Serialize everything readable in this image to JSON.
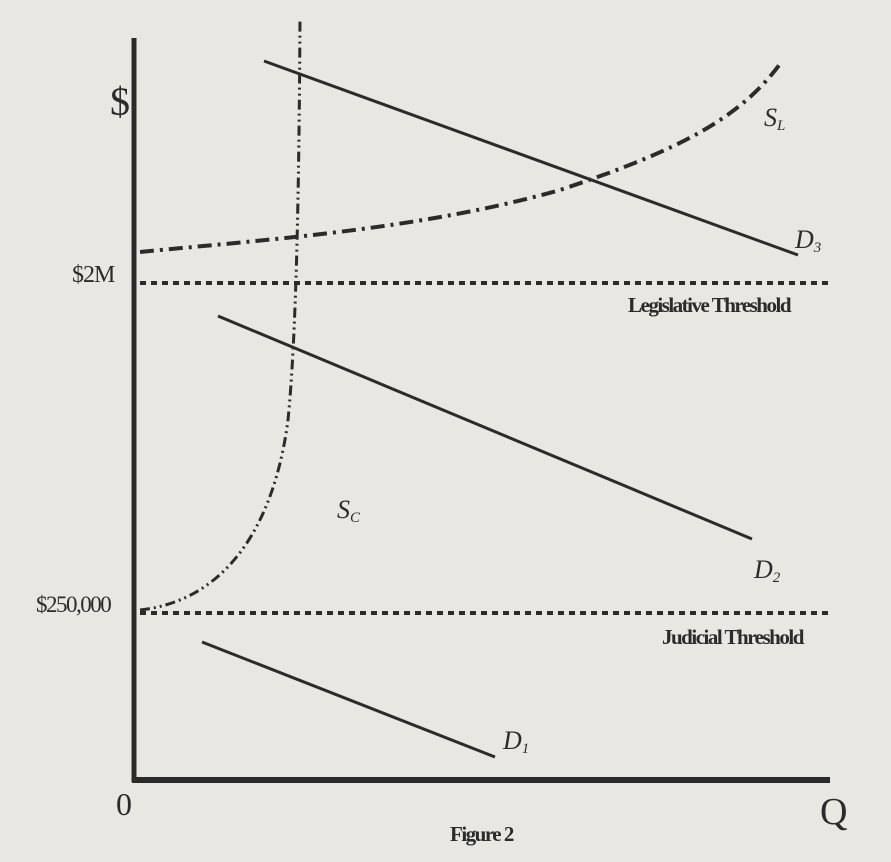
{
  "axes": {
    "y_label": "$",
    "x_label": "Q",
    "origin_label": "0",
    "y_ticks": {
      "upper": "$2M",
      "lower": "$250,000"
    }
  },
  "thresholds": {
    "legislative": "Legislative Threshold",
    "judicial": "Judicial Threshold"
  },
  "curves": {
    "supply_legislative": {
      "main": "S",
      "sub": "L"
    },
    "supply_court": {
      "main": "S",
      "sub": "C"
    },
    "demand_3": {
      "main": "D",
      "sub": "3"
    },
    "demand_2": {
      "main": "D",
      "sub": "2"
    },
    "demand_1": {
      "main": "D",
      "sub": "1"
    }
  },
  "caption": "Figure 2",
  "colors": {
    "ink": "#2b2b2b",
    "paper": "#e9e7e2"
  }
}
